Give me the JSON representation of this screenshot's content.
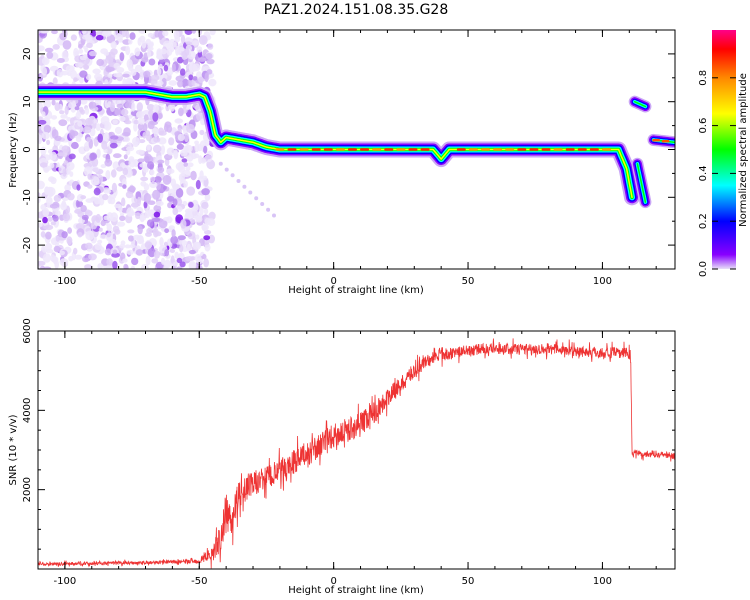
{
  "title": "PAZ1.2024.151.08.35.G28",
  "chart_data": [
    {
      "type": "heatmap",
      "xlabel": "Height of straight line (km)",
      "ylabel": "Frequency (Hz)",
      "xlim": [
        -110,
        127
      ],
      "ylim": [
        -25,
        25
      ],
      "x_ticks": [
        -100,
        -50,
        0,
        50,
        100
      ],
      "y_ticks": [
        -20,
        -10,
        0,
        10,
        20
      ],
      "colorbar": {
        "label": "Normalized spectral amplitude",
        "range": [
          0,
          1
        ],
        "ticks": [
          "0.0",
          "0.2",
          "0.4",
          "0.6",
          "0.8"
        ],
        "colormap": [
          "#e8e0f8",
          "#8800ff",
          "#0000ff",
          "#00ffff",
          "#00ff00",
          "#ffff00",
          "#ff8800",
          "#ff0000",
          "#ff0088"
        ]
      },
      "ridge_frequency": {
        "x": [
          -110,
          -100,
          -90,
          -80,
          -70,
          -60,
          -55,
          -50,
          -48,
          -46,
          -44,
          -42,
          -40,
          -35,
          -30,
          -25,
          -20,
          -10,
          0,
          10,
          20,
          30,
          37,
          40,
          43,
          50,
          60,
          70,
          80,
          90,
          100,
          106,
          109,
          111
        ],
        "y": [
          12,
          12,
          12,
          12,
          12,
          11,
          11,
          11.5,
          11,
          8,
          3,
          1.5,
          2.5,
          2,
          1.5,
          0.5,
          0,
          0,
          0,
          0,
          0,
          0,
          0,
          -2,
          0,
          0,
          0,
          0,
          0,
          0,
          0,
          0,
          -4,
          -10
        ]
      },
      "secondary_segments": [
        {
          "x": [
            112,
            116
          ],
          "y": [
            10,
            9
          ]
        },
        {
          "x": [
            113,
            116
          ],
          "y": [
            -3,
            -11
          ]
        },
        {
          "x": [
            119,
            127
          ],
          "y": [
            2,
            1.5
          ]
        }
      ]
    },
    {
      "type": "line",
      "xlabel": "Height of straight line (km)",
      "ylabel": "SNR (10 * v/v)",
      "xlim": [
        -110,
        127
      ],
      "ylim": [
        0,
        6000
      ],
      "x_ticks": [
        -100,
        -50,
        0,
        50,
        100
      ],
      "y_ticks": [
        2000,
        4000,
        6000
      ],
      "color": "#ee3333",
      "series": [
        {
          "x": [
            -110,
            -100,
            -90,
            -80,
            -70,
            -60,
            -50,
            -45,
            -42,
            -40,
            -38,
            -35,
            -30,
            -25,
            -20,
            -15,
            -10,
            -5,
            0,
            5,
            10,
            15,
            20,
            25,
            30,
            35,
            40,
            45,
            50,
            55,
            60,
            70,
            80,
            90,
            100,
            105,
            109,
            110.5,
            111,
            115,
            120,
            127
          ],
          "y": [
            120,
            130,
            140,
            150,
            160,
            180,
            200,
            400,
            800,
            1400,
            1300,
            1900,
            2150,
            2300,
            2450,
            2700,
            2900,
            3100,
            3350,
            3500,
            3650,
            3950,
            4300,
            4650,
            5000,
            5250,
            5400,
            5450,
            5500,
            5550,
            5550,
            5550,
            5550,
            5500,
            5450,
            5450,
            5450,
            5400,
            2950,
            2900,
            2900,
            2850
          ],
          "noise_amplitude": [
            60,
            60,
            60,
            60,
            60,
            60,
            80,
            300,
            500,
            700,
            600,
            500,
            450,
            450,
            450,
            450,
            450,
            450,
            450,
            450,
            450,
            400,
            350,
            300,
            280,
            250,
            230,
            200,
            200,
            200,
            200,
            200,
            200,
            200,
            200,
            200,
            200,
            200,
            120,
            120,
            120,
            120
          ]
        }
      ]
    }
  ]
}
